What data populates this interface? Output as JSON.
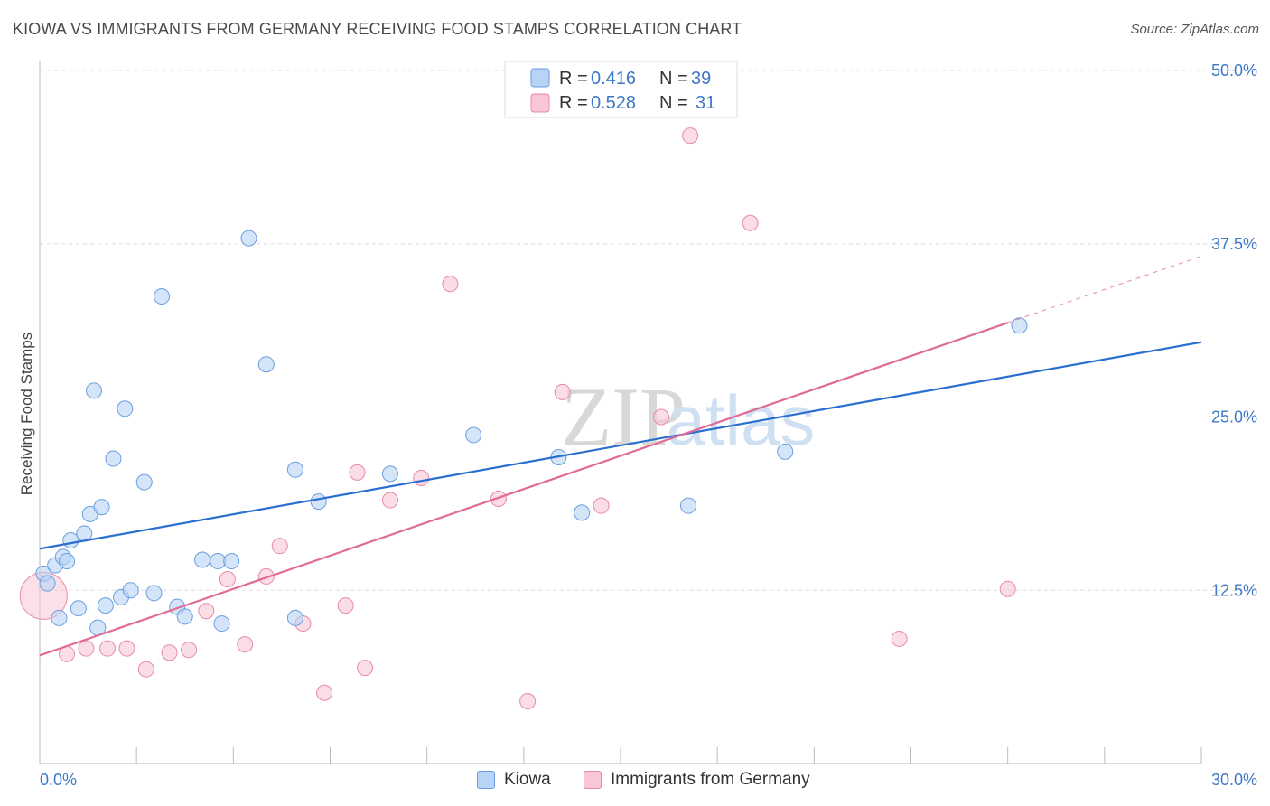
{
  "header": {
    "title": "KIOWA VS IMMIGRANTS FROM GERMANY RECEIVING FOOD STAMPS CORRELATION CHART",
    "source": "Source: ZipAtlas.com"
  },
  "watermark": {
    "zip": "ZIP",
    "atlas": "atlas"
  },
  "colors": {
    "kiowa_fill": "#b7d3f5",
    "kiowa_stroke": "#6a9ee0",
    "kiowa_line": "#2a6fcf",
    "germany_fill": "#f8c6d6",
    "germany_stroke": "#e889a8",
    "germany_line": "#e06b95",
    "tick_label": "#3d78c8",
    "grid": "#dddddd"
  },
  "legend": {
    "rows": [
      {
        "r_label": "R = ",
        "r_value": "0.416",
        "n_label": "N = ",
        "n_value": "39"
      },
      {
        "r_label": "R = ",
        "r_value": "0.528",
        "n_label": "N = ",
        "n_value": "31"
      }
    ]
  },
  "bottom_legend": {
    "items": [
      "Kiowa",
      "Immigrants from Germany"
    ]
  },
  "chart_data": {
    "type": "scatter",
    "title": "KIOWA VS IMMIGRANTS FROM GERMANY RECEIVING FOOD STAMPS CORRELATION CHART",
    "xlabel": "",
    "ylabel": "Receiving Food Stamps",
    "xlim": [
      0,
      30
    ],
    "ylim": [
      0,
      50
    ],
    "x_tick_labels": [
      "0.0%",
      "30.0%"
    ],
    "y_ticks": [
      12.5,
      25.0,
      37.5,
      50.0
    ],
    "y_tick_labels": [
      "12.5%",
      "25.0%",
      "37.5%",
      "50.0%"
    ],
    "grid": true,
    "legend_placement": "top-center",
    "series": [
      {
        "name": "Kiowa",
        "points": [
          [
            0.1,
            13.7
          ],
          [
            0.2,
            13.0
          ],
          [
            0.4,
            14.3
          ],
          [
            0.5,
            10.5
          ],
          [
            0.6,
            14.9
          ],
          [
            0.7,
            14.6
          ],
          [
            0.8,
            16.1
          ],
          [
            1.0,
            11.2
          ],
          [
            1.15,
            16.6
          ],
          [
            1.3,
            18.0
          ],
          [
            1.4,
            26.9
          ],
          [
            1.5,
            9.8
          ],
          [
            1.6,
            18.5
          ],
          [
            1.7,
            11.4
          ],
          [
            1.9,
            22.0
          ],
          [
            2.1,
            12.0
          ],
          [
            2.2,
            25.6
          ],
          [
            2.35,
            12.5
          ],
          [
            2.7,
            20.3
          ],
          [
            2.95,
            12.3
          ],
          [
            3.15,
            33.7
          ],
          [
            3.55,
            11.3
          ],
          [
            3.75,
            10.6
          ],
          [
            4.2,
            14.7
          ],
          [
            4.6,
            14.6
          ],
          [
            4.7,
            10.1
          ],
          [
            4.95,
            14.6
          ],
          [
            5.4,
            37.9
          ],
          [
            5.85,
            28.8
          ],
          [
            6.6,
            10.5
          ],
          [
            6.6,
            21.2
          ],
          [
            7.2,
            18.9
          ],
          [
            9.05,
            20.9
          ],
          [
            11.2,
            23.7
          ],
          [
            13.4,
            22.1
          ],
          [
            14.0,
            18.1
          ],
          [
            16.75,
            18.6
          ],
          [
            19.25,
            22.5
          ],
          [
            25.3,
            31.6
          ]
        ],
        "trend": {
          "x": [
            0,
            30
          ],
          "y": [
            15.5,
            30.4
          ]
        }
      },
      {
        "name": "Immigrants from Germany",
        "points": [
          [
            0.1,
            12.1
          ],
          [
            0.7,
            7.9
          ],
          [
            1.2,
            8.3
          ],
          [
            1.75,
            8.3
          ],
          [
            2.25,
            8.3
          ],
          [
            2.75,
            6.8
          ],
          [
            3.35,
            8.0
          ],
          [
            3.85,
            8.2
          ],
          [
            4.3,
            11.0
          ],
          [
            4.85,
            13.3
          ],
          [
            5.3,
            8.6
          ],
          [
            5.85,
            13.5
          ],
          [
            6.2,
            15.7
          ],
          [
            6.8,
            10.1
          ],
          [
            7.35,
            5.1
          ],
          [
            7.9,
            11.4
          ],
          [
            8.2,
            21.0
          ],
          [
            8.4,
            6.9
          ],
          [
            9.05,
            19.0
          ],
          [
            9.85,
            20.6
          ],
          [
            10.6,
            34.6
          ],
          [
            11.85,
            19.1
          ],
          [
            12.6,
            4.5
          ],
          [
            13.5,
            26.8
          ],
          [
            14.5,
            18.6
          ],
          [
            16.05,
            25.0
          ],
          [
            16.8,
            45.3
          ],
          [
            18.35,
            39.0
          ],
          [
            22.2,
            9.0
          ],
          [
            25.0,
            12.6
          ],
          [
            16.7,
            49.9
          ]
        ],
        "trend": {
          "x": [
            0,
            25.0
          ],
          "y": [
            7.8,
            31.8
          ]
        },
        "trend_dashed": {
          "x": [
            25.0,
            30
          ],
          "y": [
            31.8,
            36.6
          ]
        }
      }
    ]
  }
}
